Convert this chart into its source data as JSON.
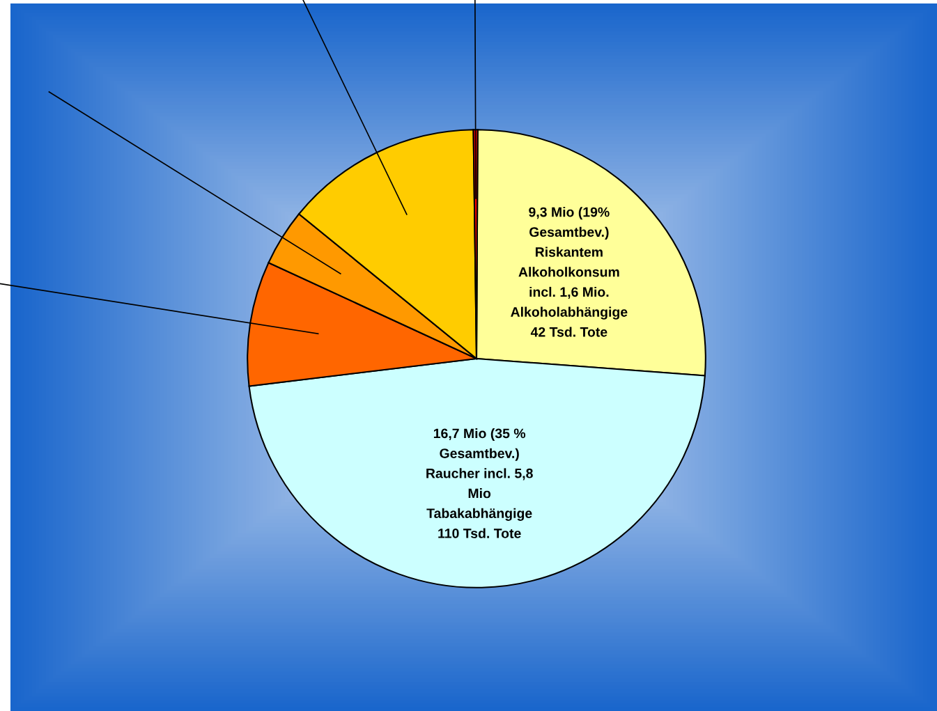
{
  "chart_data": {
    "type": "pie",
    "categories": [
      "9,3 Mio (19%\nGesamtbev.)\nRiskantem\nAlkoholkonsum\nincl. 1,6 Mio.\nAlkoholabhängige\n42 Tsd. Tote",
      "16,7 Mio (35 %\nGesamtbev.)\nRaucher incl. 5,8\nMio\nTabakabhängige\n110 Tsd. Tote",
      null,
      null,
      null,
      null
    ],
    "values": [
      26.1,
      46.9,
      8.8,
      4.0,
      13.9,
      0.3
    ],
    "colors": [
      "#ffff99",
      "#ccffff",
      "#ff6600",
      "#ff9900",
      "#ffcc00",
      "#ff0000"
    ]
  }
}
